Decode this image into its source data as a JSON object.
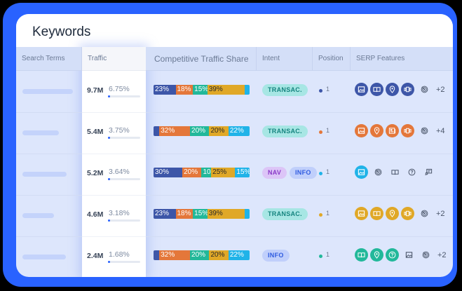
{
  "title": "Keywords",
  "columns": {
    "search_terms": "Search Terms",
    "traffic": "Traffic",
    "share": "Competitive Traffic Share",
    "intent": "Intent",
    "position": "Position",
    "serp": "SERP Features"
  },
  "colors": {
    "frame": "#2962ff",
    "share_blue": "#3d56a8",
    "share_orange": "#e4773a",
    "share_teal": "#22b89a",
    "share_yellow": "#e0a827",
    "share_cyan": "#20b3e8",
    "transac_bg": "#a7e6e4",
    "transac_fg": "#15847f",
    "nav_bg": "#dcc5f7",
    "nav_fg": "#8a39c8",
    "info_bg": "#c0cffb",
    "info_fg": "#2f5be0"
  },
  "rows": [
    {
      "skeleton_width": 72,
      "traffic": "9.7M",
      "traffic_pct": "6.75%",
      "share": [
        {
          "label": "23%",
          "pct": 23,
          "color": "blue"
        },
        {
          "label": "18%",
          "pct": 18,
          "color": "orange"
        },
        {
          "label": "15%",
          "pct": 15,
          "color": "teal"
        },
        {
          "label": "39%",
          "pct": 39,
          "color": "yellow"
        },
        {
          "label": "",
          "pct": 5,
          "color": "cyan"
        }
      ],
      "intent": [
        "TRANSAC."
      ],
      "position": "1",
      "position_color": "#3d56a8",
      "serp_color": "#3d56a8",
      "serp_icons": [
        "image-icon",
        "book-icon",
        "location-pin-icon",
        "carousel-icon"
      ],
      "serp_plain": [
        "target-icon"
      ],
      "serp_more": "+2"
    },
    {
      "skeleton_width": 52,
      "traffic": "5.4M",
      "traffic_pct": "3.75%",
      "share": [
        {
          "label": "",
          "pct": 6,
          "color": "blue"
        },
        {
          "label": "32%",
          "pct": 32,
          "color": "orange"
        },
        {
          "label": "20%",
          "pct": 20,
          "color": "teal"
        },
        {
          "label": "20%",
          "pct": 20,
          "color": "yellow"
        },
        {
          "label": "22%",
          "pct": 22,
          "color": "cyan"
        }
      ],
      "intent": [
        "TRANSAC."
      ],
      "position": "1",
      "position_color": "#e4773a",
      "serp_color": "#e4773a",
      "serp_icons": [
        "image-icon",
        "location-pin-icon",
        "news-icon",
        "carousel-icon"
      ],
      "serp_plain": [
        "target-icon"
      ],
      "serp_more": "+4"
    },
    {
      "skeleton_width": 63,
      "traffic": "5.2M",
      "traffic_pct": "3.64%",
      "share": [
        {
          "label": "30%",
          "pct": 30,
          "color": "blue"
        },
        {
          "label": "20%",
          "pct": 20,
          "color": "orange"
        },
        {
          "label": "10%",
          "pct": 10,
          "color": "teal"
        },
        {
          "label": "25%",
          "pct": 25,
          "color": "yellow"
        },
        {
          "label": "15%",
          "pct": 15,
          "color": "cyan"
        }
      ],
      "intent": [
        "NAV",
        "INFO"
      ],
      "position": "1",
      "position_color": "#20b3e8",
      "serp_color": "#20b3e8",
      "serp_icons": [
        "image-icon"
      ],
      "serp_plain": [
        "target-icon",
        "book-icon",
        "question-icon",
        "review-icon"
      ],
      "serp_more": ""
    },
    {
      "skeleton_width": 45,
      "traffic": "4.6M",
      "traffic_pct": "3.18%",
      "share": [
        {
          "label": "23%",
          "pct": 23,
          "color": "blue"
        },
        {
          "label": "18%",
          "pct": 18,
          "color": "orange"
        },
        {
          "label": "15%",
          "pct": 15,
          "color": "teal"
        },
        {
          "label": "39%",
          "pct": 39,
          "color": "yellow"
        },
        {
          "label": "",
          "pct": 5,
          "color": "cyan"
        }
      ],
      "intent": [
        "TRANSAC."
      ],
      "position": "1",
      "position_color": "#e0a827",
      "serp_color": "#e0a827",
      "serp_icons": [
        "image-icon",
        "book-icon",
        "location-pin-icon",
        "carousel-icon"
      ],
      "serp_plain": [
        "target-icon"
      ],
      "serp_more": "+2"
    },
    {
      "skeleton_width": 62,
      "traffic": "2.4M",
      "traffic_pct": "1.68%",
      "share": [
        {
          "label": "",
          "pct": 6,
          "color": "blue"
        },
        {
          "label": "32%",
          "pct": 32,
          "color": "orange"
        },
        {
          "label": "20%",
          "pct": 20,
          "color": "teal"
        },
        {
          "label": "20%",
          "pct": 20,
          "color": "yellow"
        },
        {
          "label": "22%",
          "pct": 22,
          "color": "cyan"
        }
      ],
      "intent": [
        "INFO"
      ],
      "position": "1",
      "position_color": "#22b89a",
      "serp_color": "#22b89a",
      "serp_icons": [
        "book-icon",
        "location-pin-icon",
        "question-icon"
      ],
      "serp_plain": [
        "image-icon",
        "target-icon"
      ],
      "serp_more": "+2"
    }
  ]
}
